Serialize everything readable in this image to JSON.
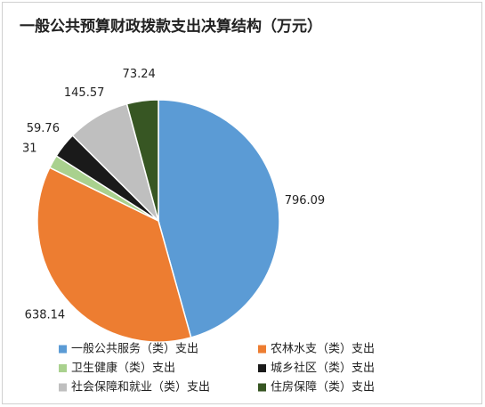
{
  "chart_data": {
    "type": "pie",
    "title": "一般公共预算财政拨款支出决算结构（万元）",
    "categories": [
      "一般公共服务（类）支出",
      "农林水支（类）支出",
      "卫生健康（类）支出",
      "城乡社区（类）支出",
      "社会保障和就业（类）支出",
      "住房保障（类）支出"
    ],
    "values": [
      796.09,
      638.14,
      31,
      59.76,
      145.57,
      73.24
    ],
    "colors": [
      "#5b9bd5",
      "#ed7d31",
      "#a9d18e",
      "#1a1a1a",
      "#bfbfbf",
      "#375623"
    ]
  }
}
